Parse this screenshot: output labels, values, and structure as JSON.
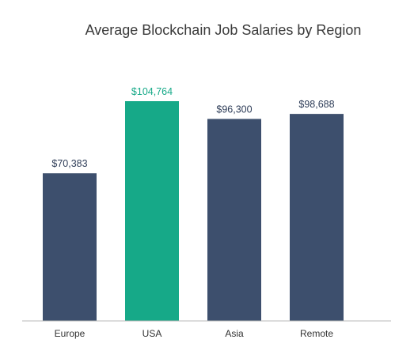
{
  "colors": {
    "default_bar": "#3d4f6d",
    "highlight_bar": "#16a988",
    "default_label": "#2e3d58",
    "highlight_label": "#16a988",
    "baseline": "#b8b8b8",
    "title": "#3a3a3a"
  },
  "chart_data": {
    "type": "bar",
    "title": "Average Blockchain Job Salaries by Region",
    "xlabel": "",
    "ylabel": "",
    "grid": false,
    "legend": "none",
    "ylim": [
      0,
      140000
    ],
    "categories": [
      "Europe",
      "USA",
      "Asia",
      "Remote"
    ],
    "values": [
      70383,
      104764,
      96300,
      98688
    ],
    "value_labels": [
      "$70,383",
      "$104,764",
      "$96,300",
      "$98,688"
    ],
    "highlight_index": 1
  }
}
